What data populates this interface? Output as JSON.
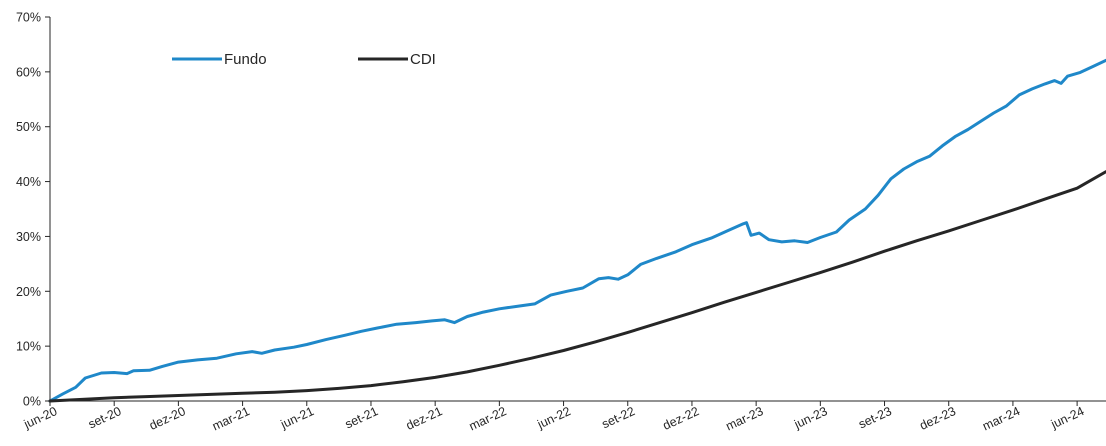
{
  "chart_data": {
    "type": "line",
    "title": "",
    "xlabel": "",
    "ylabel": "",
    "ylim": [
      0,
      70
    ],
    "y_ticks": [
      "0%",
      "10%",
      "20%",
      "30%",
      "40%",
      "50%",
      "60%",
      "70%"
    ],
    "y_tick_values": [
      0,
      10,
      20,
      30,
      40,
      50,
      60,
      70
    ],
    "x_tick_labels": [
      "jun-20",
      "set-20",
      "dez-20",
      "mar-21",
      "jun-21",
      "set-21",
      "dez-21",
      "mar-22",
      "jun-22",
      "set-22",
      "dez-22",
      "mar-23",
      "jun-23",
      "set-23",
      "dez-23",
      "mar-24",
      "jun-24"
    ],
    "x_index_range": [
      0,
      16.45
    ],
    "grid": false,
    "legend_position": "top-left",
    "series": [
      {
        "name": "Fundo",
        "color": "#1F88C9",
        "points": [
          [
            0.0,
            0.0
          ],
          [
            0.2,
            1.3
          ],
          [
            0.4,
            2.5
          ],
          [
            0.55,
            4.2
          ],
          [
            0.8,
            5.1
          ],
          [
            1.0,
            5.2
          ],
          [
            1.2,
            5.0
          ],
          [
            1.3,
            5.5
          ],
          [
            1.55,
            5.6
          ],
          [
            1.75,
            6.3
          ],
          [
            2.0,
            7.1
          ],
          [
            2.3,
            7.5
          ],
          [
            2.6,
            7.8
          ],
          [
            2.9,
            8.6
          ],
          [
            3.15,
            9.0
          ],
          [
            3.3,
            8.7
          ],
          [
            3.5,
            9.3
          ],
          [
            3.8,
            9.8
          ],
          [
            4.0,
            10.3
          ],
          [
            4.3,
            11.2
          ],
          [
            4.6,
            12.0
          ],
          [
            4.85,
            12.7
          ],
          [
            5.1,
            13.3
          ],
          [
            5.4,
            14.0
          ],
          [
            5.7,
            14.3
          ],
          [
            5.95,
            14.6
          ],
          [
            6.15,
            14.8
          ],
          [
            6.3,
            14.3
          ],
          [
            6.5,
            15.4
          ],
          [
            6.75,
            16.2
          ],
          [
            7.0,
            16.8
          ],
          [
            7.3,
            17.3
          ],
          [
            7.55,
            17.7
          ],
          [
            7.8,
            19.3
          ],
          [
            8.05,
            20.0
          ],
          [
            8.3,
            20.6
          ],
          [
            8.55,
            22.3
          ],
          [
            8.7,
            22.5
          ],
          [
            8.85,
            22.2
          ],
          [
            9.0,
            23.0
          ],
          [
            9.2,
            24.9
          ],
          [
            9.45,
            26.0
          ],
          [
            9.75,
            27.2
          ],
          [
            10.0,
            28.5
          ],
          [
            10.3,
            29.7
          ],
          [
            10.55,
            31.0
          ],
          [
            10.8,
            32.3
          ],
          [
            10.85,
            32.5
          ],
          [
            10.92,
            30.2
          ],
          [
            11.05,
            30.6
          ],
          [
            11.2,
            29.4
          ],
          [
            11.4,
            29.0
          ],
          [
            11.6,
            29.2
          ],
          [
            11.8,
            28.9
          ],
          [
            12.0,
            29.8
          ],
          [
            12.25,
            30.8
          ],
          [
            12.45,
            33.0
          ],
          [
            12.7,
            35.0
          ],
          [
            12.9,
            37.5
          ],
          [
            13.1,
            40.5
          ],
          [
            13.3,
            42.3
          ],
          [
            13.5,
            43.6
          ],
          [
            13.7,
            44.6
          ],
          [
            13.9,
            46.5
          ],
          [
            14.1,
            48.2
          ],
          [
            14.3,
            49.5
          ],
          [
            14.5,
            51.0
          ],
          [
            14.7,
            52.5
          ],
          [
            14.9,
            53.8
          ],
          [
            15.1,
            55.8
          ],
          [
            15.3,
            56.9
          ],
          [
            15.5,
            57.8
          ],
          [
            15.65,
            58.4
          ],
          [
            15.75,
            57.9
          ],
          [
            15.85,
            59.2
          ],
          [
            16.05,
            59.9
          ],
          [
            16.25,
            61.0
          ],
          [
            16.45,
            62.1
          ]
        ]
      },
      {
        "name": "CDI",
        "color": "#262626",
        "points": [
          [
            0.0,
            0.0
          ],
          [
            0.5,
            0.3
          ],
          [
            1.0,
            0.6
          ],
          [
            1.5,
            0.8
          ],
          [
            2.0,
            1.0
          ],
          [
            2.5,
            1.2
          ],
          [
            3.0,
            1.4
          ],
          [
            3.5,
            1.6
          ],
          [
            4.0,
            1.9
          ],
          [
            4.5,
            2.3
          ],
          [
            5.0,
            2.8
          ],
          [
            5.5,
            3.5
          ],
          [
            6.0,
            4.3
          ],
          [
            6.5,
            5.3
          ],
          [
            7.0,
            6.5
          ],
          [
            7.5,
            7.8
          ],
          [
            8.0,
            9.2
          ],
          [
            8.5,
            10.8
          ],
          [
            9.0,
            12.5
          ],
          [
            9.5,
            14.3
          ],
          [
            10.0,
            16.1
          ],
          [
            10.5,
            18.0
          ],
          [
            11.0,
            19.8
          ],
          [
            11.5,
            21.6
          ],
          [
            12.0,
            23.4
          ],
          [
            12.5,
            25.3
          ],
          [
            13.0,
            27.3
          ],
          [
            13.5,
            29.2
          ],
          [
            14.0,
            31.0
          ],
          [
            14.5,
            32.9
          ],
          [
            15.0,
            34.8
          ],
          [
            15.5,
            36.8
          ],
          [
            16.0,
            38.8
          ],
          [
            16.45,
            41.8
          ]
        ]
      }
    ]
  }
}
